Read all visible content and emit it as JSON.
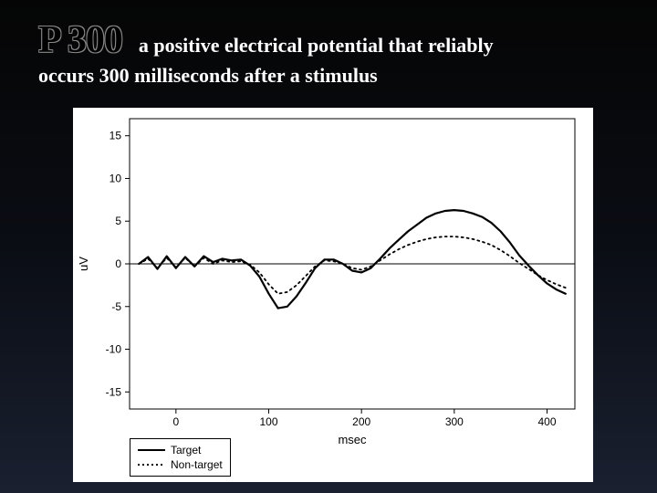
{
  "header": {
    "title": "P 300",
    "subtitle_line1": "a positive electrical potential that reliably",
    "subtitle_line2": "occurs 300 milliseconds after a stimulus"
  },
  "chart": {
    "type": "line",
    "background_color": "#ffffff",
    "axis_color": "#000000",
    "tick_color": "#000000",
    "xlabel": "msec",
    "ylabel": "uV",
    "label_fontsize": 13,
    "tick_fontsize": 12,
    "xlim": [
      -50,
      430
    ],
    "ylim": [
      -17,
      17
    ],
    "xticks": [
      0,
      100,
      200,
      300,
      400
    ],
    "yticks": [
      -15,
      -10,
      -5,
      0,
      5,
      10,
      15
    ],
    "zero_line": true,
    "series": [
      {
        "name": "Target",
        "style": "solid",
        "color": "#000000",
        "line_width": 2.2,
        "x": [
          -40,
          -30,
          -20,
          -10,
          0,
          10,
          20,
          30,
          40,
          50,
          60,
          70,
          80,
          90,
          100,
          110,
          120,
          130,
          140,
          150,
          160,
          170,
          180,
          190,
          200,
          210,
          220,
          230,
          240,
          250,
          260,
          270,
          280,
          290,
          300,
          310,
          320,
          330,
          340,
          350,
          360,
          370,
          380,
          390,
          400,
          410,
          420
        ],
        "y": [
          0.0,
          0.8,
          -0.6,
          0.9,
          -0.5,
          0.8,
          -0.3,
          0.9,
          0.2,
          0.6,
          0.4,
          0.5,
          -0.2,
          -1.5,
          -3.5,
          -5.2,
          -5.0,
          -3.8,
          -2.2,
          -0.5,
          0.5,
          0.5,
          0.0,
          -0.8,
          -1.0,
          -0.5,
          0.6,
          1.8,
          2.8,
          3.8,
          4.6,
          5.4,
          5.9,
          6.2,
          6.3,
          6.2,
          5.9,
          5.5,
          4.8,
          3.8,
          2.5,
          1.0,
          -0.2,
          -1.3,
          -2.3,
          -3.0,
          -3.5
        ]
      },
      {
        "name": "Non-target",
        "style": "dotted",
        "color": "#000000",
        "line_width": 1.8,
        "x": [
          -40,
          -30,
          -20,
          -10,
          0,
          10,
          20,
          30,
          40,
          50,
          60,
          70,
          80,
          90,
          100,
          110,
          120,
          130,
          140,
          150,
          160,
          170,
          180,
          190,
          200,
          210,
          220,
          230,
          240,
          250,
          260,
          270,
          280,
          290,
          300,
          310,
          320,
          330,
          340,
          350,
          360,
          370,
          380,
          390,
          400,
          410,
          420
        ],
        "y": [
          0.0,
          0.6,
          -0.5,
          0.7,
          -0.4,
          0.7,
          -0.3,
          0.7,
          0.0,
          0.4,
          0.2,
          0.3,
          -0.1,
          -1.0,
          -2.4,
          -3.5,
          -3.3,
          -2.5,
          -1.4,
          -0.3,
          0.4,
          0.3,
          0.0,
          -0.5,
          -0.7,
          -0.3,
          0.4,
          1.1,
          1.7,
          2.2,
          2.6,
          2.9,
          3.1,
          3.2,
          3.2,
          3.1,
          2.9,
          2.6,
          2.2,
          1.6,
          0.9,
          0.1,
          -0.6,
          -1.3,
          -1.9,
          -2.4,
          -2.8
        ]
      }
    ],
    "legend": {
      "items": [
        {
          "label": "Target",
          "style": "solid"
        },
        {
          "label": "Non-target",
          "style": "dotted"
        }
      ]
    }
  }
}
